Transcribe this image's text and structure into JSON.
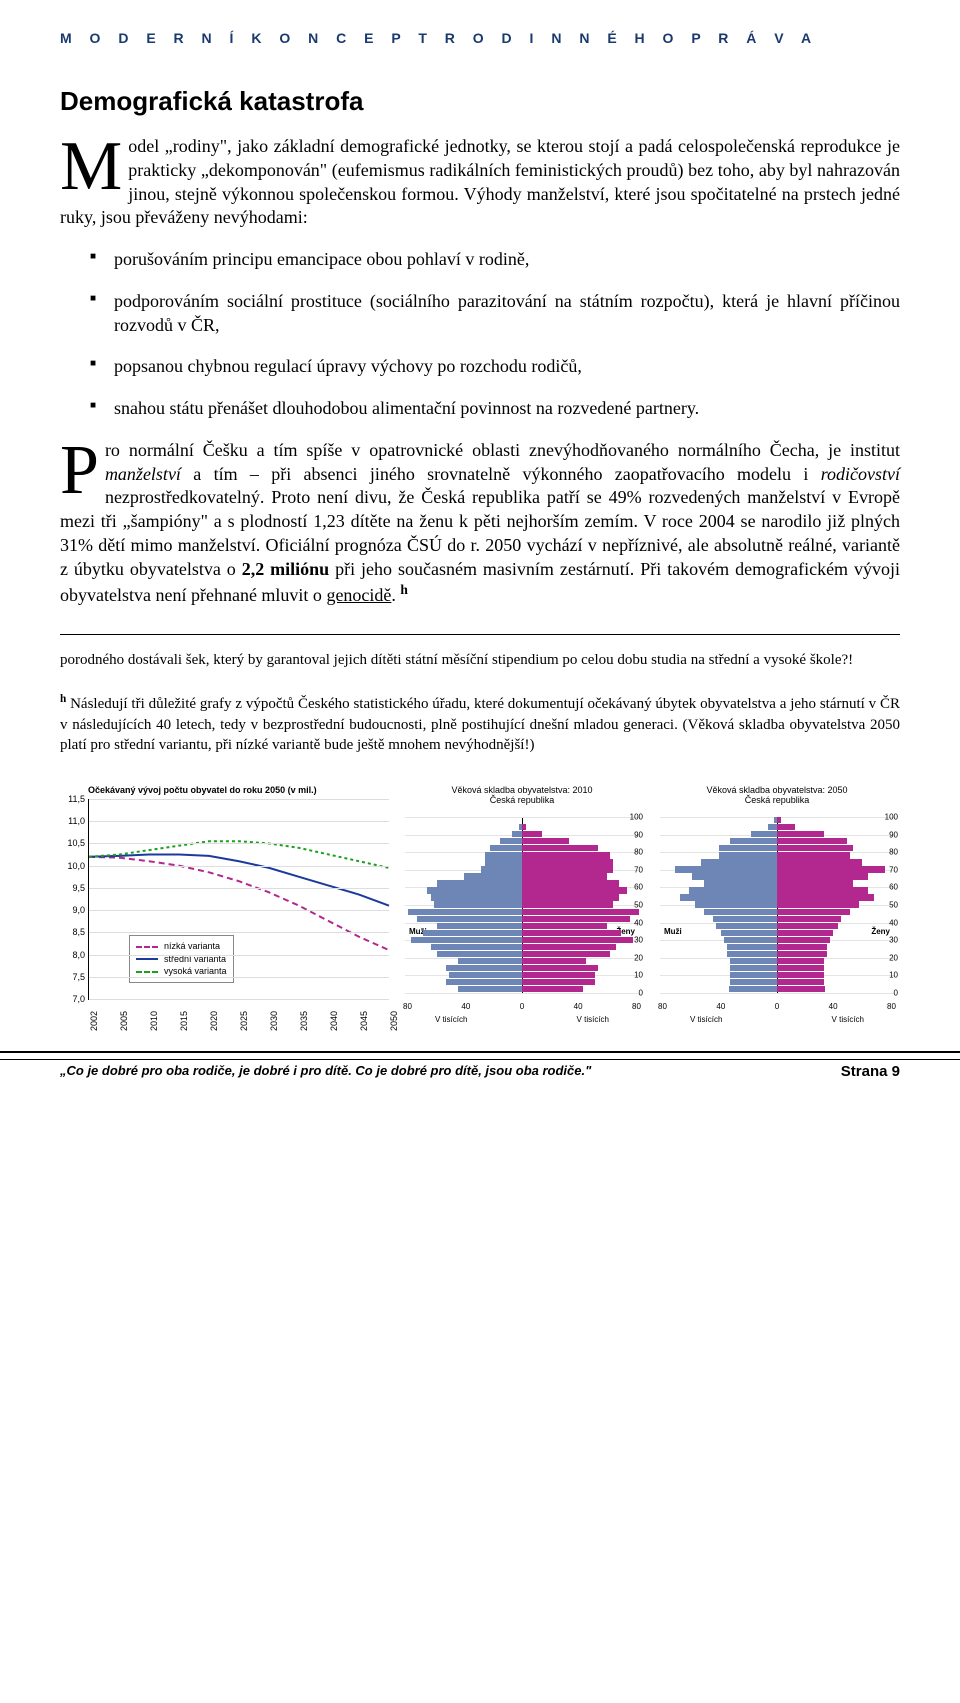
{
  "running_head": "M O D E R N Í   K O N C E P T   R O D I N N É H O   P R Á V A",
  "section_title": "Demografická katastrofa",
  "para1": "Model „rodiny\", jako základní demografické jednotky, se kterou stojí a padá celospolečenská reprodukce je prakticky „dekomponován\" (eufemismus radikálních feministických proudů) bez toho, aby byl nahrazován jinou, stejně výkonnou společenskou formou. Výhody manželství, které jsou spočitatelné na prstech jedné ruky, jsou převáženy nevýhodami:",
  "bullets": [
    "porušováním principu emancipace obou pohlaví v rodině,",
    "podporováním sociální prostituce (sociálního parazitování na státním rozpočtu), která je hlavní příčinou rozvodů v ČR,",
    "popsanou chybnou regulací úpravy výchovy po rozchodu rodičů,",
    "snahou státu přenášet dlouhodobou alimentační povinnost na rozvedené partnery."
  ],
  "para2_parts": {
    "a": "Pro normální Češku a tím spíše v opatrovnické oblasti znevýhodňovaného normálního Čecha, je institut ",
    "b": "manželství",
    "c": " a tím – při absenci jiného srovnatelně výkonného zaopatřovacího modelu   i ",
    "d": "rodičovství",
    "e": " nezprostředkovatelný. Proto není divu, že Česká republika patří se 49% rozvedených manželství v Evropě mezi tři „šampióny\" a s plodností 1,23 dítěte na ženu k pěti nejhorším zemím.  V roce 2004 se narodilo již plných 31% dětí mimo manželství. Oficiální prognóza ČSÚ do r. 2050 vychází v nepříznivé, ale absolutně reálné, variantě z úbytku obyvatelstva o ",
    "f": "2,2 miliónu",
    "g": " při jeho současném masivním zestárnutí. Při takovém demografickém vývoji obyvatelstva není přehnané mluvit o ",
    "h": "genocidě",
    "i": ". "
  },
  "footnote_ref": "h",
  "footnote1": "porodného dostávali šek, který by garantoval jejich dítěti státní měsíční stipendium po celou dobu studia na střední a vysoké škole?!",
  "footnote2_prefix": "h",
  "footnote2": " Následují tři důležité grafy z výpočtů Českého statistického úřadu, které dokumentují očekávaný úbytek obyvatelstva a jeho stárnutí v ČR v následujících 40 letech, tedy v bezprostřední budoucnosti, plně postihující dnešní mladou generaci. (Věková skladba obyvatelstva 2050 platí pro střední variantu, při nízké variantě bude ještě mnohem nevýhodnější!)",
  "line_chart": {
    "title": "Očekávaný vývoj počtu obyvatel do roku 2050 (v mil.)",
    "ylim": [
      7.0,
      11.5
    ],
    "yticks": [
      "11,5",
      "11,0",
      "10,5",
      "10,0",
      "9,5",
      "9,0",
      "8,5",
      "8,0",
      "7,5",
      "7,0"
    ],
    "ytick_values": [
      11.5,
      11.0,
      10.5,
      10.0,
      9.5,
      9.0,
      8.5,
      8.0,
      7.5,
      7.0
    ],
    "xticks": [
      "2002",
      "2005",
      "2010",
      "2015",
      "2020",
      "2025",
      "2030",
      "2035",
      "2040",
      "2045",
      "2050"
    ],
    "series": [
      {
        "name": "nízká varianta",
        "color": "#b2288f",
        "dash": "6,4",
        "values": [
          10.2,
          10.18,
          10.1,
          10.0,
          9.85,
          9.65,
          9.4,
          9.1,
          8.75,
          8.4,
          8.1
        ]
      },
      {
        "name": "střední varianta",
        "color": "#1a3a9e",
        "dash": "",
        "values": [
          10.2,
          10.22,
          10.25,
          10.25,
          10.22,
          10.1,
          9.95,
          9.75,
          9.55,
          9.35,
          9.1
        ]
      },
      {
        "name": "vysoká varianta",
        "color": "#1aa01a",
        "dash": "3,3",
        "values": [
          10.2,
          10.25,
          10.35,
          10.45,
          10.55,
          10.55,
          10.5,
          10.4,
          10.25,
          10.1,
          9.95
        ]
      }
    ]
  },
  "pyramid_a": {
    "title1": "Věková skladba obyvatelstva: 2010",
    "title2": "Česká republika",
    "male_label": "Muži",
    "female_label": "Ženy",
    "male_color": "#6d86b5",
    "female_color": "#b2288f",
    "yticks": [
      "100",
      "90",
      "80",
      "70",
      "60",
      "50",
      "40",
      "30",
      "20",
      "10",
      "0"
    ],
    "xticks": [
      "80",
      "40",
      "0",
      "40",
      "80"
    ],
    "xunit": "V tisících",
    "xmax": 80,
    "bars": [
      [
        0,
        0
      ],
      [
        2,
        3
      ],
      [
        7,
        14
      ],
      [
        15,
        32
      ],
      [
        22,
        52
      ],
      [
        25,
        60
      ],
      [
        25,
        62
      ],
      [
        28,
        62
      ],
      [
        40,
        58
      ],
      [
        58,
        66
      ],
      [
        65,
        72
      ],
      [
        62,
        66
      ],
      [
        60,
        62
      ],
      [
        78,
        80
      ],
      [
        72,
        74
      ],
      [
        58,
        58
      ],
      [
        68,
        68
      ],
      [
        76,
        76
      ],
      [
        62,
        64
      ],
      [
        58,
        60
      ],
      [
        44,
        44
      ],
      [
        52,
        52
      ],
      [
        50,
        50
      ],
      [
        52,
        50
      ],
      [
        44,
        42
      ]
    ]
  },
  "pyramid_b": {
    "title1": "Věková skladba obyvatelstva: 2050",
    "title2": "Česká republika",
    "male_label": "Muži",
    "female_label": "Ženy",
    "male_color": "#6d86b5",
    "female_color": "#b2288f",
    "yticks": [
      "100",
      "90",
      "80",
      "70",
      "60",
      "50",
      "40",
      "30",
      "20",
      "10",
      "0"
    ],
    "xticks": [
      "80",
      "40",
      "0",
      "40",
      "80"
    ],
    "xunit": "V tisících",
    "xmax": 80,
    "bars": [
      [
        2,
        3
      ],
      [
        6,
        12
      ],
      [
        18,
        32
      ],
      [
        32,
        48
      ],
      [
        40,
        52
      ],
      [
        40,
        50
      ],
      [
        52,
        58
      ],
      [
        70,
        74
      ],
      [
        58,
        62
      ],
      [
        50,
        52
      ],
      [
        60,
        62
      ],
      [
        66,
        66
      ],
      [
        56,
        56
      ],
      [
        50,
        50
      ],
      [
        44,
        44
      ],
      [
        42,
        42
      ],
      [
        38,
        38
      ],
      [
        36,
        36
      ],
      [
        34,
        34
      ],
      [
        34,
        34
      ],
      [
        32,
        32
      ],
      [
        32,
        32
      ],
      [
        32,
        32
      ],
      [
        32,
        32
      ],
      [
        33,
        33
      ]
    ]
  },
  "footer": {
    "quote": "„Co je dobré pro oba rodiče, je dobré i pro dítě. Co je dobré pro dítě, jsou oba rodiče.\"",
    "page_label": "Strana 9"
  }
}
